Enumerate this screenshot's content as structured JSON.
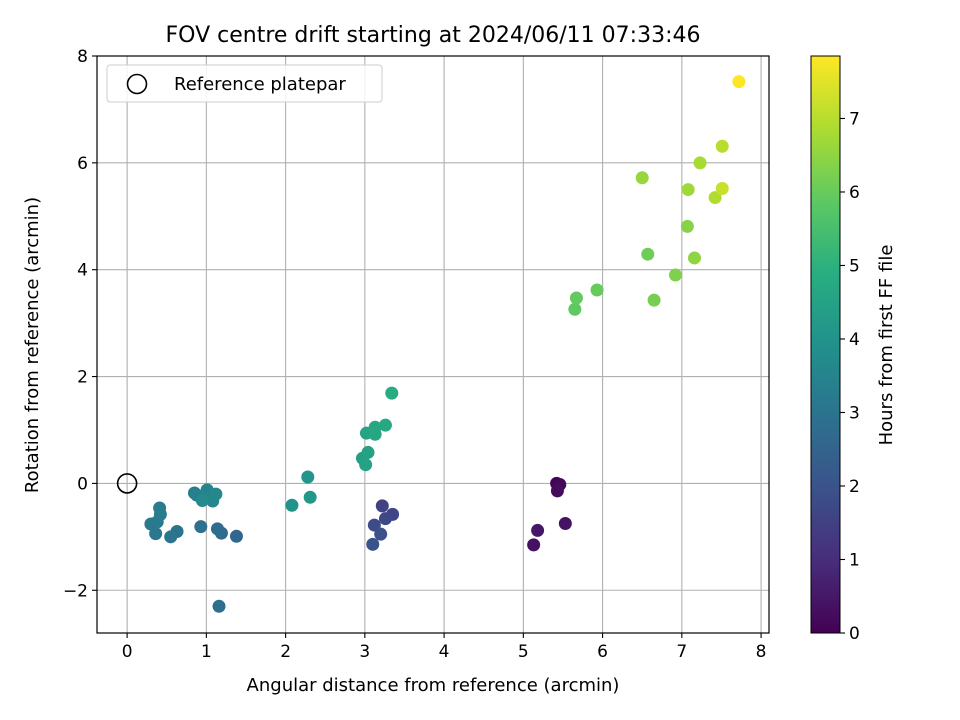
{
  "chart_data": {
    "type": "scatter",
    "title": "FOV centre drift starting at 2024/06/11 07:33:46",
    "xlabel": "Angular distance from reference (arcmin)",
    "ylabel": "Rotation from reference (arcmin)",
    "xlim": [
      -0.38,
      8.1
    ],
    "ylim": [
      -2.8,
      8.0
    ],
    "xticks": [
      0,
      1,
      2,
      3,
      4,
      5,
      6,
      7,
      8
    ],
    "xtick_labels": [
      "0",
      "1",
      "2",
      "3",
      "4",
      "5",
      "6",
      "7",
      "8"
    ],
    "yticks": [
      -2,
      0,
      2,
      4,
      6,
      8
    ],
    "ytick_labels": [
      "−2",
      "0",
      "2",
      "4",
      "6",
      "8"
    ],
    "grid": true,
    "colormap": "viridis",
    "colorbar": {
      "label": "Hours from first FF file",
      "range": [
        0,
        7.85
      ],
      "ticks": [
        0,
        1,
        2,
        3,
        4,
        5,
        6,
        7
      ],
      "tick_labels": [
        "0",
        "1",
        "2",
        "3",
        "4",
        "5",
        "6",
        "7"
      ]
    },
    "reference": {
      "x": 0,
      "y": 0,
      "label": "Reference platepar"
    },
    "legend": {
      "placement": "upper-left",
      "entries": [
        "Reference platepar"
      ]
    },
    "points": [
      {
        "x": 5.42,
        "y": 0.0,
        "h": 0.05
      },
      {
        "x": 5.46,
        "y": -0.02,
        "h": 0.15
      },
      {
        "x": 5.43,
        "y": -0.14,
        "h": 0.25
      },
      {
        "x": 5.53,
        "y": -0.75,
        "h": 0.4
      },
      {
        "x": 5.18,
        "y": -0.88,
        "h": 0.5
      },
      {
        "x": 5.13,
        "y": -1.15,
        "h": 0.35
      },
      {
        "x": 3.22,
        "y": -0.42,
        "h": 1.5
      },
      {
        "x": 3.35,
        "y": -0.58,
        "h": 1.6
      },
      {
        "x": 3.26,
        "y": -0.66,
        "h": 1.7
      },
      {
        "x": 3.12,
        "y": -0.78,
        "h": 1.8
      },
      {
        "x": 3.2,
        "y": -0.95,
        "h": 1.9
      },
      {
        "x": 3.1,
        "y": -1.14,
        "h": 2.0
      },
      {
        "x": 1.38,
        "y": -0.99,
        "h": 2.6
      },
      {
        "x": 1.19,
        "y": -0.93,
        "h": 2.7
      },
      {
        "x": 1.14,
        "y": -0.85,
        "h": 2.8
      },
      {
        "x": 1.16,
        "y": -2.3,
        "h": 2.85
      },
      {
        "x": 0.93,
        "y": -0.81,
        "h": 2.9
      },
      {
        "x": 0.63,
        "y": -0.9,
        "h": 3.0
      },
      {
        "x": 0.55,
        "y": -1.0,
        "h": 3.05
      },
      {
        "x": 0.36,
        "y": -0.94,
        "h": 3.1
      },
      {
        "x": 0.3,
        "y": -0.76,
        "h": 3.15
      },
      {
        "x": 0.38,
        "y": -0.72,
        "h": 3.2
      },
      {
        "x": 0.42,
        "y": -0.58,
        "h": 3.25
      },
      {
        "x": 0.41,
        "y": -0.46,
        "h": 3.3
      },
      {
        "x": 0.85,
        "y": -0.18,
        "h": 3.35
      },
      {
        "x": 0.88,
        "y": -0.22,
        "h": 3.4
      },
      {
        "x": 0.97,
        "y": -0.28,
        "h": 3.45
      },
      {
        "x": 1.01,
        "y": -0.12,
        "h": 3.5
      },
      {
        "x": 1.04,
        "y": -0.22,
        "h": 3.55
      },
      {
        "x": 1.08,
        "y": -0.33,
        "h": 3.6
      },
      {
        "x": 1.12,
        "y": -0.2,
        "h": 3.65
      },
      {
        "x": 0.95,
        "y": -0.32,
        "h": 3.7
      },
      {
        "x": 2.08,
        "y": -0.41,
        "h": 4.0
      },
      {
        "x": 2.28,
        "y": 0.12,
        "h": 4.1
      },
      {
        "x": 2.31,
        "y": -0.26,
        "h": 4.15
      },
      {
        "x": 2.97,
        "y": 0.47,
        "h": 4.4
      },
      {
        "x": 3.01,
        "y": 0.35,
        "h": 4.45
      },
      {
        "x": 3.04,
        "y": 0.58,
        "h": 4.5
      },
      {
        "x": 3.02,
        "y": 0.94,
        "h": 4.55
      },
      {
        "x": 3.1,
        "y": 0.96,
        "h": 4.6
      },
      {
        "x": 3.13,
        "y": 0.92,
        "h": 4.62
      },
      {
        "x": 3.13,
        "y": 1.05,
        "h": 4.65
      },
      {
        "x": 3.26,
        "y": 1.09,
        "h": 4.7
      },
      {
        "x": 3.34,
        "y": 1.69,
        "h": 4.8
      },
      {
        "x": 5.65,
        "y": 3.26,
        "h": 5.9
      },
      {
        "x": 5.67,
        "y": 3.47,
        "h": 5.95
      },
      {
        "x": 5.93,
        "y": 3.62,
        "h": 6.0
      },
      {
        "x": 6.57,
        "y": 4.29,
        "h": 6.1
      },
      {
        "x": 6.65,
        "y": 3.43,
        "h": 6.2
      },
      {
        "x": 6.92,
        "y": 3.9,
        "h": 6.3
      },
      {
        "x": 7.07,
        "y": 4.81,
        "h": 6.4
      },
      {
        "x": 7.16,
        "y": 4.22,
        "h": 6.5
      },
      {
        "x": 6.5,
        "y": 5.72,
        "h": 6.6
      },
      {
        "x": 7.08,
        "y": 5.5,
        "h": 6.7
      },
      {
        "x": 7.23,
        "y": 6.0,
        "h": 6.8
      },
      {
        "x": 7.42,
        "y": 5.35,
        "h": 6.9
      },
      {
        "x": 7.51,
        "y": 6.31,
        "h": 7.0
      },
      {
        "x": 7.51,
        "y": 5.52,
        "h": 7.2
      },
      {
        "x": 7.72,
        "y": 7.52,
        "h": 7.85
      }
    ]
  }
}
